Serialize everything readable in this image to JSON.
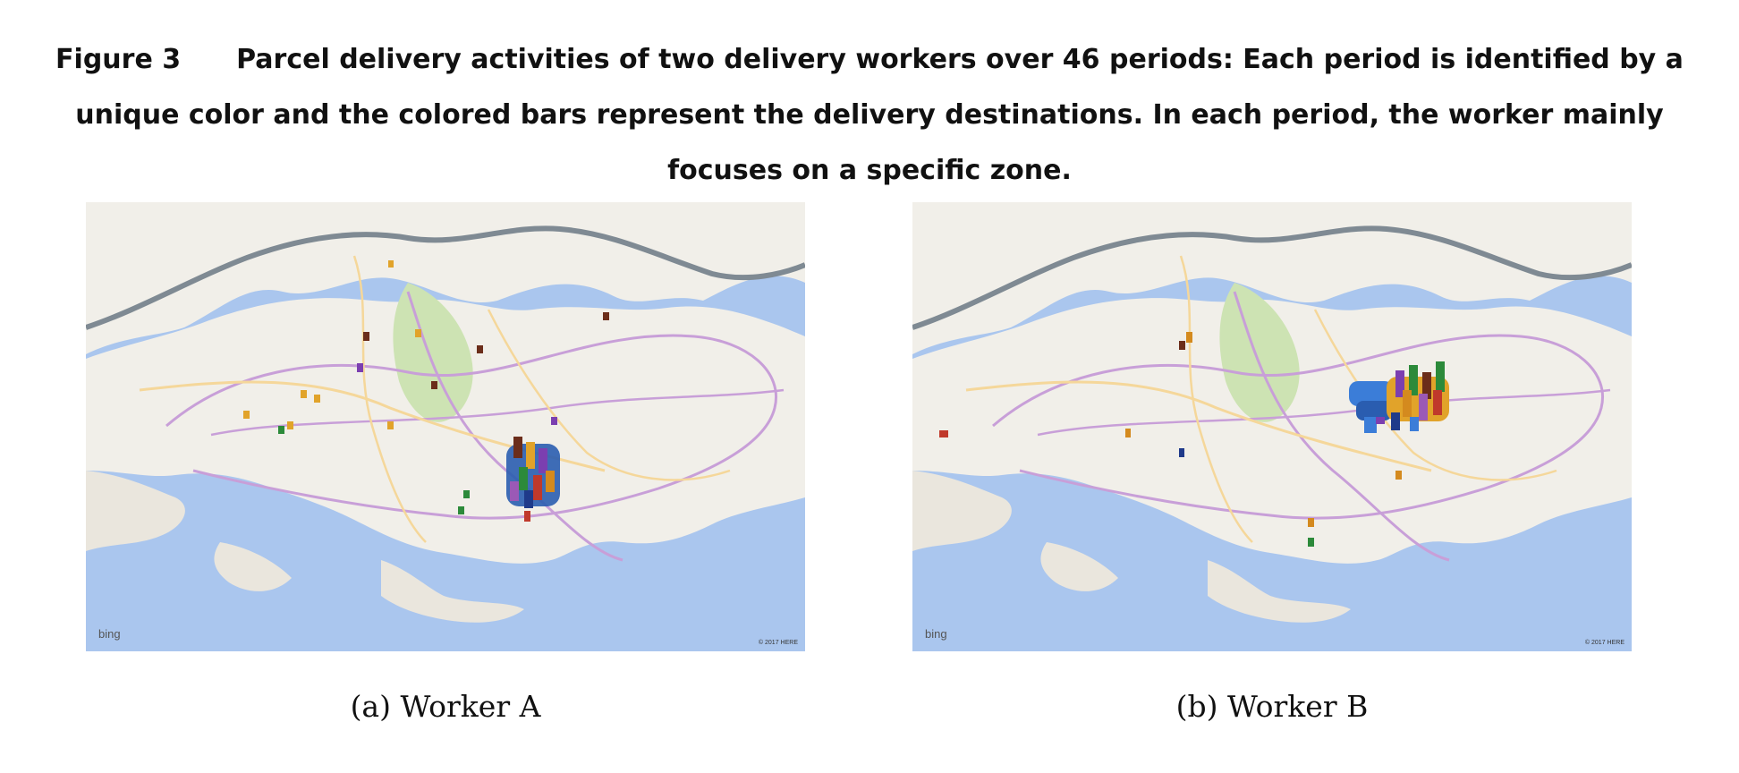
{
  "figure": {
    "label": "Figure 3",
    "caption": "Parcel delivery activities of two delivery workers over 46 periods: Each period is identified by a unique color and the colored bars represent the delivery destinations. In each period, the worker mainly focuses on a specific zone."
  },
  "panels": [
    {
      "id": "a",
      "subcaption": "(a) Worker A",
      "bing_label": "bing",
      "copyright": "© 2017 HERE",
      "cluster": "south-central"
    },
    {
      "id": "b",
      "subcaption": "(b) Worker B",
      "bing_label": "bing",
      "copyright": "© 2017 HERE",
      "cluster": "north-east-central"
    }
  ],
  "colors": {
    "water": "#aac6ee",
    "land": "#f1efe9",
    "park": "#cde3b3",
    "expressway": "#c89fd8",
    "major_road": "#f5d79a",
    "river_road": "#7f8a93",
    "bars": [
      "#2a5db0",
      "#6b2d1a",
      "#e1a32a",
      "#7b3fb0",
      "#2c8a3a",
      "#c0392b",
      "#1f3a8a",
      "#d48a1e",
      "#9b59b6",
      "#3b7dd8"
    ]
  }
}
